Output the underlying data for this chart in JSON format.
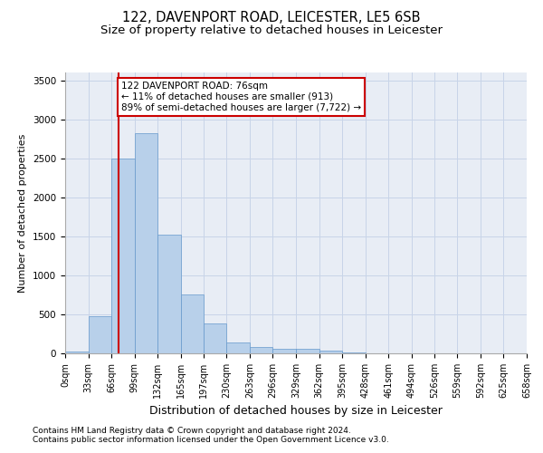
{
  "title": "122, DAVENPORT ROAD, LEICESTER, LE5 6SB",
  "subtitle": "Size of property relative to detached houses in Leicester",
  "xlabel": "Distribution of detached houses by size in Leicester",
  "ylabel": "Number of detached properties",
  "bar_values": [
    20,
    480,
    2500,
    2820,
    1520,
    750,
    380,
    140,
    80,
    55,
    55,
    30,
    10,
    0,
    0,
    0,
    0,
    0,
    0,
    0
  ],
  "bin_edges": [
    0,
    33,
    66,
    99,
    132,
    165,
    197,
    230,
    263,
    296,
    329,
    362,
    395,
    428,
    461,
    494,
    526,
    559,
    592,
    625,
    658
  ],
  "tick_labels": [
    "0sqm",
    "33sqm",
    "66sqm",
    "99sqm",
    "132sqm",
    "165sqm",
    "197sqm",
    "230sqm",
    "263sqm",
    "296sqm",
    "329sqm",
    "362sqm",
    "395sqm",
    "428sqm",
    "461sqm",
    "494sqm",
    "526sqm",
    "559sqm",
    "592sqm",
    "625sqm",
    "658sqm"
  ],
  "bar_color": "#b8d0ea",
  "bar_edge_color": "#6699cc",
  "vline_x": 76,
  "vline_color": "#cc0000",
  "annotation_text": "122 DAVENPORT ROAD: 76sqm\n← 11% of detached houses are smaller (913)\n89% of semi-detached houses are larger (7,722) →",
  "annotation_box_edge": "#cc0000",
  "ylim": [
    0,
    3600
  ],
  "yticks": [
    0,
    500,
    1000,
    1500,
    2000,
    2500,
    3000,
    3500
  ],
  "grid_color": "#c8d4e8",
  "bg_color": "#e8edf5",
  "footer_line1": "Contains HM Land Registry data © Crown copyright and database right 2024.",
  "footer_line2": "Contains public sector information licensed under the Open Government Licence v3.0.",
  "title_fontsize": 10.5,
  "subtitle_fontsize": 9.5,
  "xlabel_fontsize": 9,
  "ylabel_fontsize": 8,
  "tick_fontsize": 7,
  "footer_fontsize": 6.5,
  "annotation_fontsize": 7.5
}
